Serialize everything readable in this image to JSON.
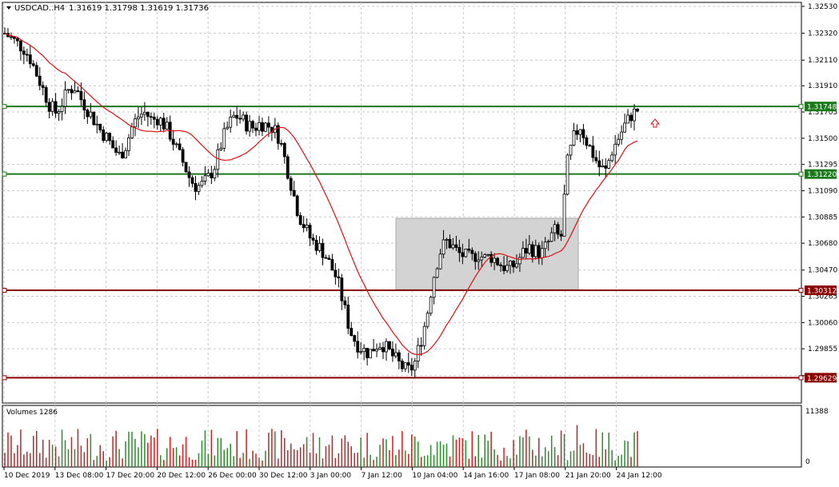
{
  "header": {
    "symbol": "USDCAD..H4",
    "ohlc": "1.31619 1.31798 1.31619 1.31736"
  },
  "volumes_panel": {
    "label": "Volumes 1286",
    "max_label": "11388",
    "min_label": "0"
  },
  "price_axis": {
    "ticks": [
      "1.32530",
      "1.32320",
      "1.32110",
      "1.31910",
      "1.31705",
      "1.31500",
      "1.31295",
      "1.31090",
      "1.30885",
      "1.30680",
      "1.30470",
      "1.30265",
      "1.30060",
      "1.29855",
      "1.29645"
    ]
  },
  "time_axis": {
    "labels": [
      "10 Dec 2019",
      "13 Dec 08:00",
      "17 Dec 20:00",
      "20 Dec 12:00",
      "26 Dec 00:00",
      "30 Dec 12:00",
      "3 Jan 00:00",
      "7 Jan 12:00",
      "10 Jan 04:00",
      "14 Jan 16:00",
      "17 Jan 08:00",
      "21 Jan 20:00",
      "24 Jan 12:00"
    ]
  },
  "levels": [
    {
      "label": "1.31748",
      "color": "#1a7a1a"
    },
    {
      "label": "1.31220",
      "color": "#1a7a1a"
    },
    {
      "label": "1.30312",
      "color": "#8b0000"
    },
    {
      "label": "1.29629",
      "color": "#8b0000"
    }
  ],
  "colors": {
    "grid": "#c8c8c8",
    "candle": "#000000",
    "ma": "#e01010",
    "range_box": "#d3d3d3",
    "volume": "#2e8b2e",
    "volume_down": "#cc2020",
    "arrow": "#e01010"
  },
  "icons": {
    "dropdown": "triangle-down-icon",
    "signal": "up-arrow-icon"
  },
  "chart_data": {
    "type": "candlestick",
    "symbol": "USDCAD",
    "timeframe": "H4",
    "y_range": [
      1.2945,
      1.3253
    ],
    "prices": [
      1.3232,
      1.3228,
      1.3224,
      1.322,
      1.3212,
      1.32,
      1.3188,
      1.3176,
      1.317,
      1.3178,
      1.3188,
      1.319,
      1.318,
      1.3172,
      1.3164,
      1.3156,
      1.315,
      1.3142,
      1.3136,
      1.3145,
      1.316,
      1.3168,
      1.317,
      1.3164,
      1.3166,
      1.316,
      1.3152,
      1.314,
      1.313,
      1.3118,
      1.3112,
      1.3114,
      1.312,
      1.313,
      1.3148,
      1.316,
      1.3168,
      1.3165,
      1.316,
      1.3158,
      1.3162,
      1.316,
      1.3158,
      1.315,
      1.313,
      1.311,
      1.309,
      1.308,
      1.307,
      1.3066,
      1.306,
      1.305,
      1.304,
      1.302,
      1.3,
      1.299,
      1.2985,
      1.2982,
      1.2988,
      1.299,
      1.2984,
      1.2978,
      1.2972,
      1.2968,
      1.2972,
      1.299,
      1.301,
      1.304,
      1.306,
      1.307,
      1.3066,
      1.306,
      1.3058,
      1.3056,
      1.306,
      1.3056,
      1.3058,
      1.3054,
      1.305,
      1.3048,
      1.3052,
      1.306,
      1.3065,
      1.3062,
      1.306,
      1.3068,
      1.3078,
      1.307,
      1.313,
      1.315,
      1.316,
      1.3148,
      1.3138,
      1.3128,
      1.3124,
      1.314,
      1.315,
      1.316,
      1.3168,
      1.3172
    ],
    "moving_average_note": "red MA line overlay",
    "price_levels": [
      1.31748,
      1.3122,
      1.30312,
      1.29629
    ]
  }
}
